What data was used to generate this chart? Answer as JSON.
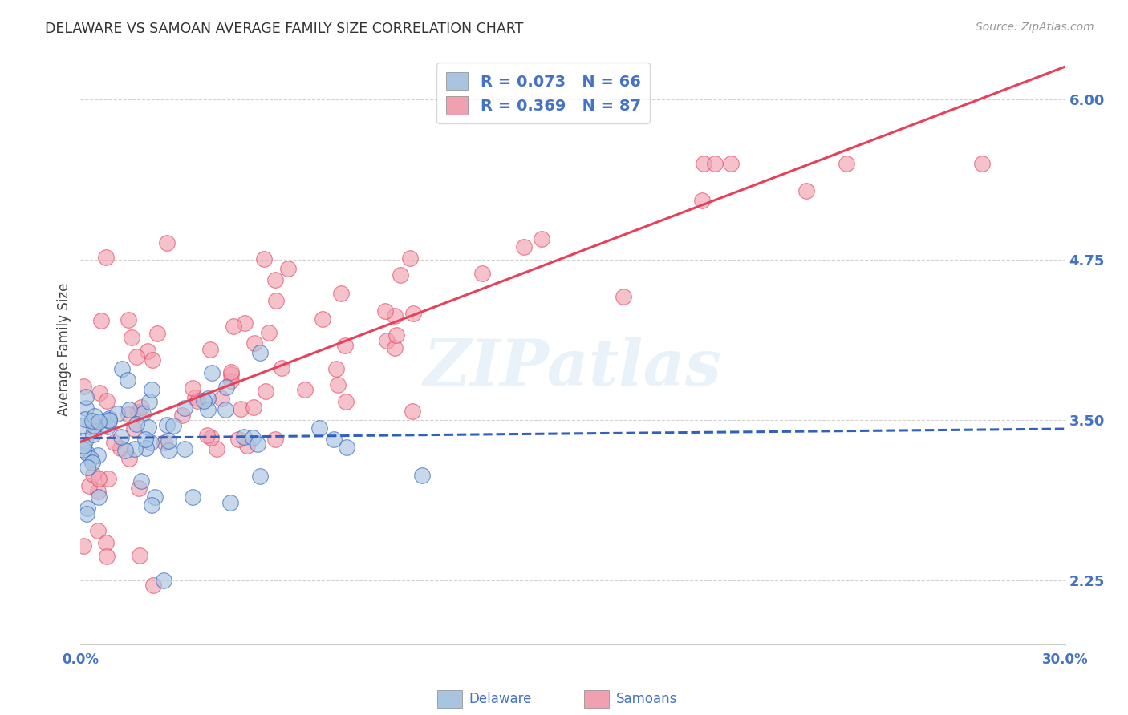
{
  "title": "DELAWARE VS SAMOAN AVERAGE FAMILY SIZE CORRELATION CHART",
  "source": "Source: ZipAtlas.com",
  "ylabel": "Average Family Size",
  "yticks": [
    2.25,
    3.5,
    4.75,
    6.0
  ],
  "xmin": 0.0,
  "xmax": 0.3,
  "ymin": 1.75,
  "ymax": 6.35,
  "delaware_color": "#a8c4e0",
  "samoan_color": "#f0a0b0",
  "delaware_line_color": "#3060c0",
  "samoan_line_color": "#e8405a",
  "tick_color": "#4472c4",
  "grid_color": "#cccccc",
  "watermark": "ZIPatlas",
  "R_delaware": 0.073,
  "N_delaware": 66,
  "R_samoan": 0.369,
  "N_samoan": 87,
  "bottom_label_delaware": "Delaware",
  "bottom_label_samoan": "Samoans"
}
